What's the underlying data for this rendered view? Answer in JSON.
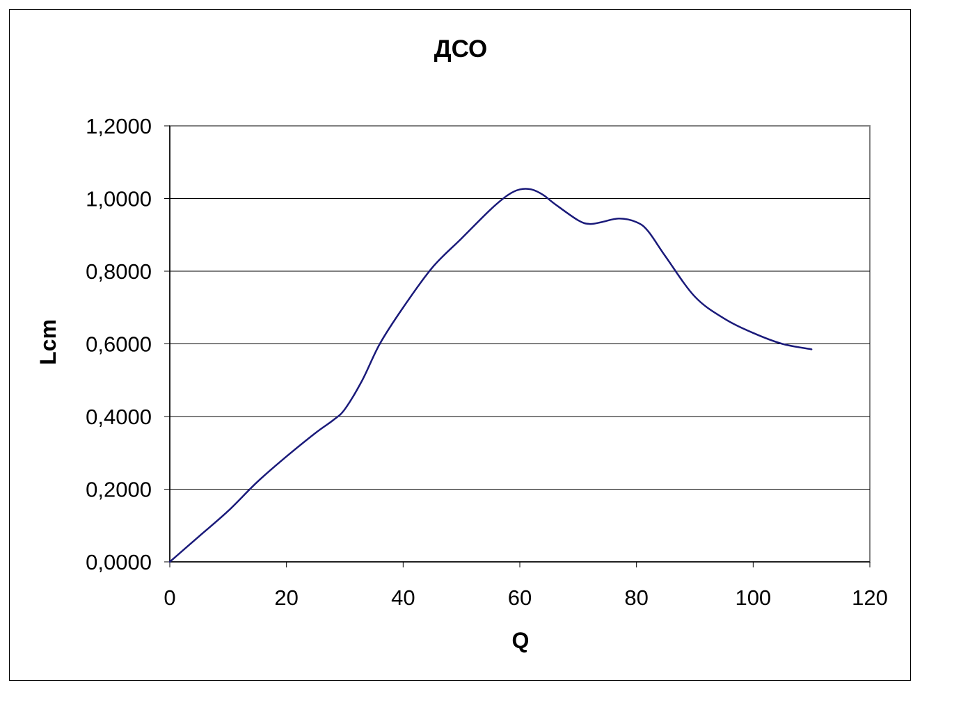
{
  "chart_data": {
    "type": "line",
    "title": "ДСО",
    "xlabel": "Q",
    "ylabel": "Lcm",
    "xlim": [
      0,
      120
    ],
    "ylim": [
      0,
      1.2
    ],
    "x_ticks": [
      "0",
      "20",
      "40",
      "60",
      "80",
      "100",
      "120"
    ],
    "x_tick_values": [
      0,
      20,
      40,
      60,
      80,
      100,
      120
    ],
    "y_ticks": [
      "0,0000",
      "0,2000",
      "0,4000",
      "0,6000",
      "0,8000",
      "1,0000",
      "1,2000"
    ],
    "y_tick_values": [
      0,
      0.2,
      0.4,
      0.6,
      0.8,
      1.0,
      1.2
    ],
    "grid": "horizontal",
    "legend": "none",
    "series": [
      {
        "color": "#1a1a7a",
        "x": [
          0,
          5,
          10,
          15,
          20,
          25,
          28,
          30,
          33,
          36,
          40,
          45,
          50,
          55,
          58,
          60,
          62,
          64,
          66,
          70,
          72,
          74,
          77,
          80,
          82,
          85,
          90,
          95,
          100,
          105,
          110
        ],
        "y": [
          0.0,
          0.07,
          0.14,
          0.22,
          0.29,
          0.355,
          0.39,
          0.42,
          0.5,
          0.6,
          0.7,
          0.81,
          0.89,
          0.97,
          1.01,
          1.025,
          1.025,
          1.01,
          0.985,
          0.94,
          0.93,
          0.935,
          0.945,
          0.935,
          0.91,
          0.84,
          0.73,
          0.67,
          0.63,
          0.6,
          0.585
        ]
      }
    ]
  }
}
